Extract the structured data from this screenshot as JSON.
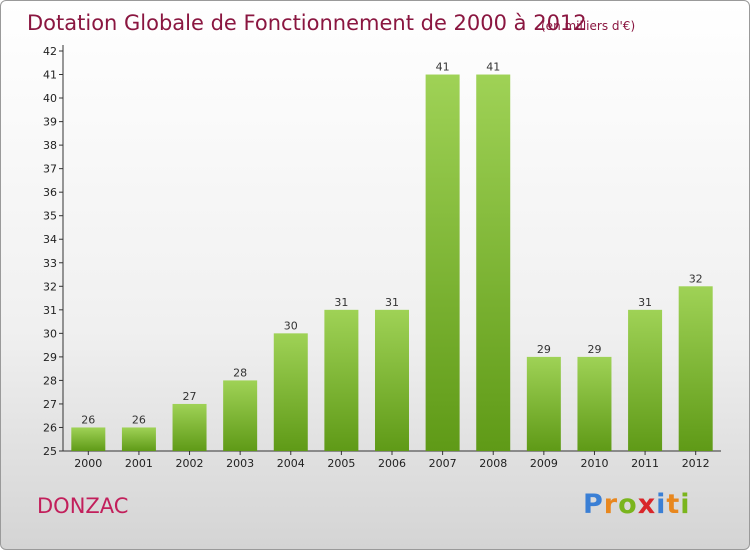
{
  "header": {
    "title": "Dotation Globale de Fonctionnement de 2000 à 2012",
    "unit": "(en milliers d'€)"
  },
  "footer": {
    "commune": "DONZAC",
    "brand": {
      "letters": [
        "P",
        "r",
        "o",
        "x",
        "i",
        "t",
        "i"
      ],
      "colors": [
        "#3a7fd5",
        "#e8871e",
        "#7ab51d",
        "#d9262a",
        "#3a7fd5",
        "#e8871e",
        "#7ab51d"
      ]
    }
  },
  "chart_data": {
    "type": "bar",
    "title": "Dotation Globale de Fonctionnement de 2000 à 2012",
    "subtitle": "(en milliers d'€)",
    "categories": [
      "2000",
      "2001",
      "2002",
      "2003",
      "2004",
      "2005",
      "2006",
      "2007",
      "2008",
      "2009",
      "2010",
      "2011",
      "2012"
    ],
    "values": [
      26,
      26,
      27,
      28,
      30,
      31,
      31,
      41,
      41,
      29,
      29,
      31,
      32
    ],
    "ylim": [
      25,
      42
    ],
    "yticks": [
      25,
      26,
      27,
      28,
      29,
      30,
      31,
      32,
      33,
      34,
      35,
      36,
      37,
      38,
      39,
      40,
      41,
      42
    ],
    "grid": false,
    "xlabel": "",
    "ylabel": "",
    "bar_color_top": "#9fd256",
    "bar_color_bottom": "#5f9a17"
  }
}
